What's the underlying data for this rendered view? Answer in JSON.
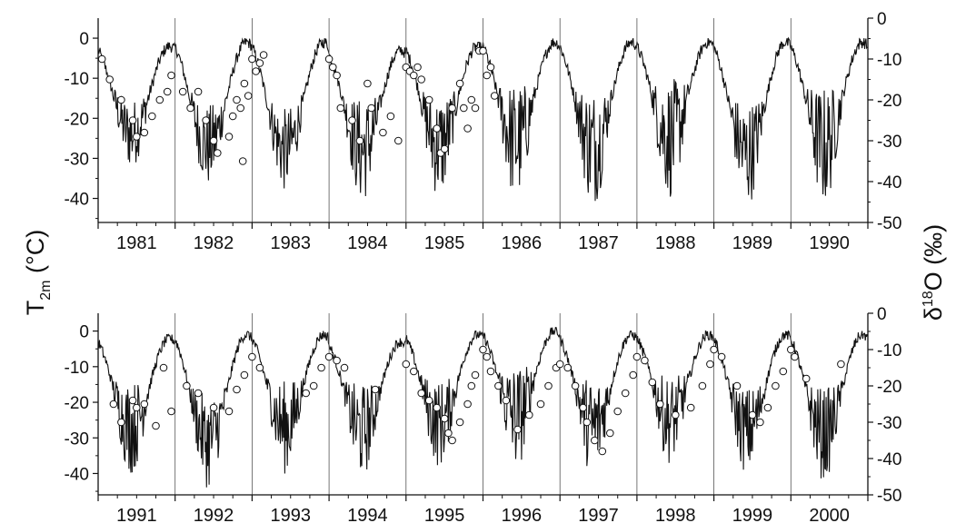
{
  "chart_data": {
    "type": "line",
    "y_left_label": {
      "main": "T",
      "sub": "2m",
      "unit": " (°C)"
    },
    "y_right_label": {
      "main": "δ",
      "sup": "18",
      "rest": "O (‰)"
    },
    "y_left_ticks": [
      "0",
      "-10",
      "-20",
      "-30",
      "-40"
    ],
    "y_right_ticks": [
      "0",
      "-10",
      "-20",
      "-30",
      "-40",
      "-50"
    ],
    "ylim_left": [
      -46,
      5
    ],
    "ylim_right": [
      -50,
      0
    ],
    "series": [
      {
        "name": "T2m",
        "kind": "line",
        "axis": "left",
        "values_description": "daily air temperature"
      },
      {
        "name": "δ18O",
        "kind": "scatter",
        "axis": "right"
      }
    ],
    "panels": [
      {
        "years": [
          "1981",
          "1982",
          "1983",
          "1984",
          "1985",
          "1986",
          "1987",
          "1988",
          "1989",
          "1990"
        ],
        "temperature_profile": {
          "summer_max": [
            -2,
            -1,
            -1,
            -3,
            -2,
            -1,
            -1,
            -1,
            -1,
            -1
          ],
          "winter_min": [
            -32,
            -37,
            -38,
            -41,
            -40,
            -41,
            -42,
            -40,
            -42,
            -42
          ],
          "winter_mean": [
            -24,
            -27,
            -28,
            -28,
            -27,
            -26,
            -27,
            -25,
            -29,
            -27
          ]
        },
        "d18o_points": [
          [
            1981.05,
            -10
          ],
          [
            1981.15,
            -15
          ],
          [
            1981.3,
            -20
          ],
          [
            1981.45,
            -25
          ],
          [
            1981.5,
            -29
          ],
          [
            1981.6,
            -28
          ],
          [
            1981.7,
            -24
          ],
          [
            1981.8,
            -20
          ],
          [
            1981.9,
            -18
          ],
          [
            1981.95,
            -14
          ],
          [
            1982.1,
            -18
          ],
          [
            1982.2,
            -22
          ],
          [
            1982.3,
            -18
          ],
          [
            1982.4,
            -25
          ],
          [
            1982.5,
            -30
          ],
          [
            1982.55,
            -33
          ],
          [
            1982.7,
            -29
          ],
          [
            1982.75,
            -24
          ],
          [
            1982.8,
            -20
          ],
          [
            1982.85,
            -22
          ],
          [
            1982.88,
            -35
          ],
          [
            1982.9,
            -16
          ],
          [
            1982.95,
            -19
          ],
          [
            1983.0,
            -10
          ],
          [
            1983.05,
            -13
          ],
          [
            1983.1,
            -11
          ],
          [
            1983.15,
            -9
          ],
          [
            1984.0,
            -10
          ],
          [
            1984.05,
            -12
          ],
          [
            1984.1,
            -14
          ],
          [
            1984.15,
            -22
          ],
          [
            1984.3,
            -25
          ],
          [
            1984.4,
            -30
          ],
          [
            1984.5,
            -16
          ],
          [
            1984.55,
            -22
          ],
          [
            1984.7,
            -28
          ],
          [
            1984.8,
            -24
          ],
          [
            1984.9,
            -30
          ],
          [
            1985.0,
            -12
          ],
          [
            1985.05,
            -13
          ],
          [
            1985.1,
            -14
          ],
          [
            1985.15,
            -12
          ],
          [
            1985.2,
            -15
          ],
          [
            1985.3,
            -20
          ],
          [
            1985.4,
            -27
          ],
          [
            1985.45,
            -33
          ],
          [
            1985.5,
            -32
          ],
          [
            1985.6,
            -22
          ],
          [
            1985.7,
            -16
          ],
          [
            1985.75,
            -22
          ],
          [
            1985.8,
            -27
          ],
          [
            1985.85,
            -20
          ],
          [
            1985.9,
            -22
          ],
          [
            1985.95,
            -8
          ],
          [
            1986.0,
            -8
          ],
          [
            1986.05,
            -14
          ],
          [
            1986.1,
            -12
          ],
          [
            1986.15,
            -19
          ]
        ]
      },
      {
        "years": [
          "1991",
          "1992",
          "1993",
          "1994",
          "1995",
          "1996",
          "1997",
          "1998",
          "1999",
          "2000"
        ],
        "temperature_profile": {
          "summer_max": [
            -2,
            -1,
            -1,
            -3,
            -1,
            0,
            -1,
            -1,
            -1,
            -1
          ],
          "winter_min": [
            -40,
            -44,
            -40,
            -41,
            -38,
            -39,
            -41,
            -37,
            -40,
            -42
          ],
          "winter_mean": [
            -27,
            -31,
            -27,
            -28,
            -26,
            -24,
            -27,
            -25,
            -28,
            -29
          ]
        },
        "d18o_points": [
          [
            1991.2,
            -25
          ],
          [
            1991.3,
            -30
          ],
          [
            1991.45,
            -24
          ],
          [
            1991.5,
            -26
          ],
          [
            1991.6,
            -25
          ],
          [
            1991.75,
            -31
          ],
          [
            1991.85,
            -15
          ],
          [
            1991.95,
            -27
          ],
          [
            1992.15,
            -20
          ],
          [
            1992.3,
            -22
          ],
          [
            1992.5,
            -26
          ],
          [
            1992.7,
            -27
          ],
          [
            1992.8,
            -21
          ],
          [
            1992.9,
            -17
          ],
          [
            1993.0,
            -12
          ],
          [
            1993.1,
            -15
          ],
          [
            1993.7,
            -22
          ],
          [
            1993.8,
            -20
          ],
          [
            1993.9,
            -15
          ],
          [
            1994.0,
            -12
          ],
          [
            1994.1,
            -13
          ],
          [
            1994.2,
            -15
          ],
          [
            1994.6,
            -21
          ],
          [
            1995.0,
            -14
          ],
          [
            1995.1,
            -16
          ],
          [
            1995.2,
            -22
          ],
          [
            1995.3,
            -24
          ],
          [
            1995.4,
            -26
          ],
          [
            1995.5,
            -29
          ],
          [
            1995.55,
            -33
          ],
          [
            1995.6,
            -35
          ],
          [
            1995.7,
            -30
          ],
          [
            1995.8,
            -25
          ],
          [
            1995.85,
            -20
          ],
          [
            1995.9,
            -17
          ],
          [
            1996.0,
            -10
          ],
          [
            1996.05,
            -12
          ],
          [
            1996.1,
            -16
          ],
          [
            1996.2,
            -20
          ],
          [
            1996.3,
            -24
          ],
          [
            1996.45,
            -32
          ],
          [
            1996.6,
            -28
          ],
          [
            1996.75,
            -25
          ],
          [
            1996.85,
            -20
          ],
          [
            1996.95,
            -15
          ],
          [
            1997.0,
            -14
          ],
          [
            1997.1,
            -15
          ],
          [
            1997.2,
            -20
          ],
          [
            1997.3,
            -26
          ],
          [
            1997.35,
            -30
          ],
          [
            1997.45,
            -35
          ],
          [
            1997.55,
            -38
          ],
          [
            1997.65,
            -33
          ],
          [
            1997.75,
            -27
          ],
          [
            1997.85,
            -22
          ],
          [
            1997.95,
            -17
          ],
          [
            1998.0,
            -12
          ],
          [
            1998.1,
            -13
          ],
          [
            1998.2,
            -19
          ],
          [
            1998.3,
            -25
          ],
          [
            1998.5,
            -28
          ],
          [
            1998.7,
            -26
          ],
          [
            1998.85,
            -20
          ],
          [
            1998.95,
            -14
          ],
          [
            1999.0,
            -10
          ],
          [
            1999.1,
            -12
          ],
          [
            1999.3,
            -20
          ],
          [
            1999.5,
            -28
          ],
          [
            1999.6,
            -30
          ],
          [
            1999.7,
            -26
          ],
          [
            1999.8,
            -20
          ],
          [
            1999.9,
            -16
          ],
          [
            2000.0,
            -10
          ],
          [
            2000.05,
            -12
          ],
          [
            2000.2,
            -18
          ],
          [
            2000.65,
            -14
          ]
        ]
      }
    ]
  }
}
